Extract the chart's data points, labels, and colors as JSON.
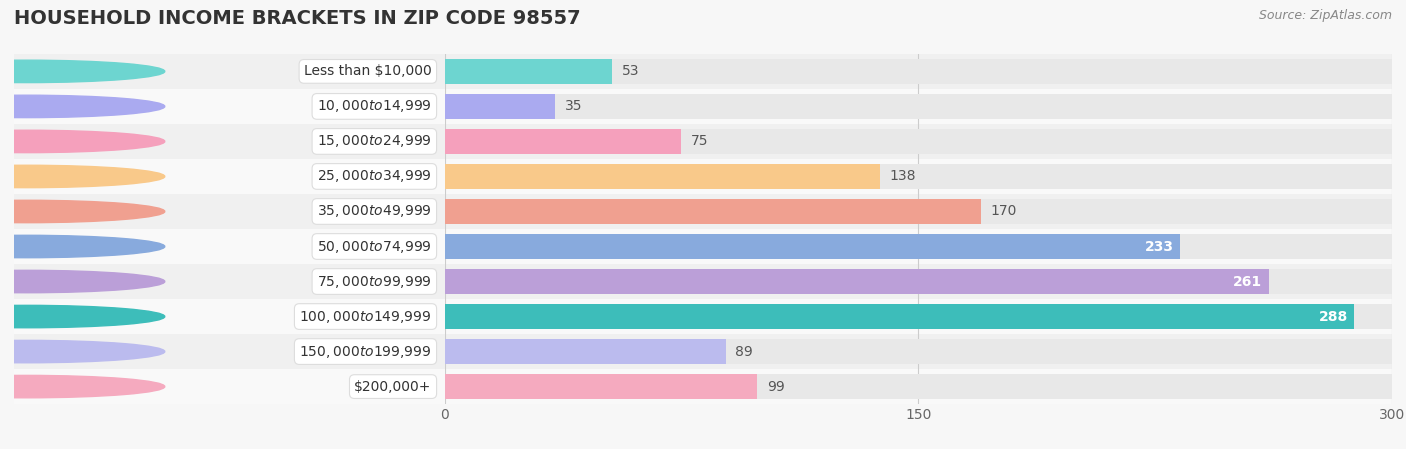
{
  "title": "HOUSEHOLD INCOME BRACKETS IN ZIP CODE 98557",
  "source": "Source: ZipAtlas.com",
  "categories": [
    "Less than $10,000",
    "$10,000 to $14,999",
    "$15,000 to $24,999",
    "$25,000 to $34,999",
    "$35,000 to $49,999",
    "$50,000 to $74,999",
    "$75,000 to $99,999",
    "$100,000 to $149,999",
    "$150,000 to $199,999",
    "$200,000+"
  ],
  "values": [
    53,
    35,
    75,
    138,
    170,
    233,
    261,
    288,
    89,
    99
  ],
  "bar_colors": [
    "#6DD5D0",
    "#AAAAF0",
    "#F5A0BC",
    "#F9C98A",
    "#F0A090",
    "#88AADD",
    "#BB9FD8",
    "#3DBDBA",
    "#BBBBEE",
    "#F5AABF"
  ],
  "label_inside": [
    false,
    false,
    false,
    false,
    false,
    true,
    true,
    true,
    false,
    false
  ],
  "xlim": [
    0,
    300
  ],
  "xticks": [
    0,
    150,
    300
  ],
  "bg_color": "#f7f7f7",
  "bar_bg_color": "#e8e8e8",
  "row_bg_color": "#f0f0f0",
  "title_fontsize": 14,
  "source_fontsize": 9,
  "label_fontsize": 10,
  "tick_fontsize": 10,
  "cat_fontsize": 10
}
